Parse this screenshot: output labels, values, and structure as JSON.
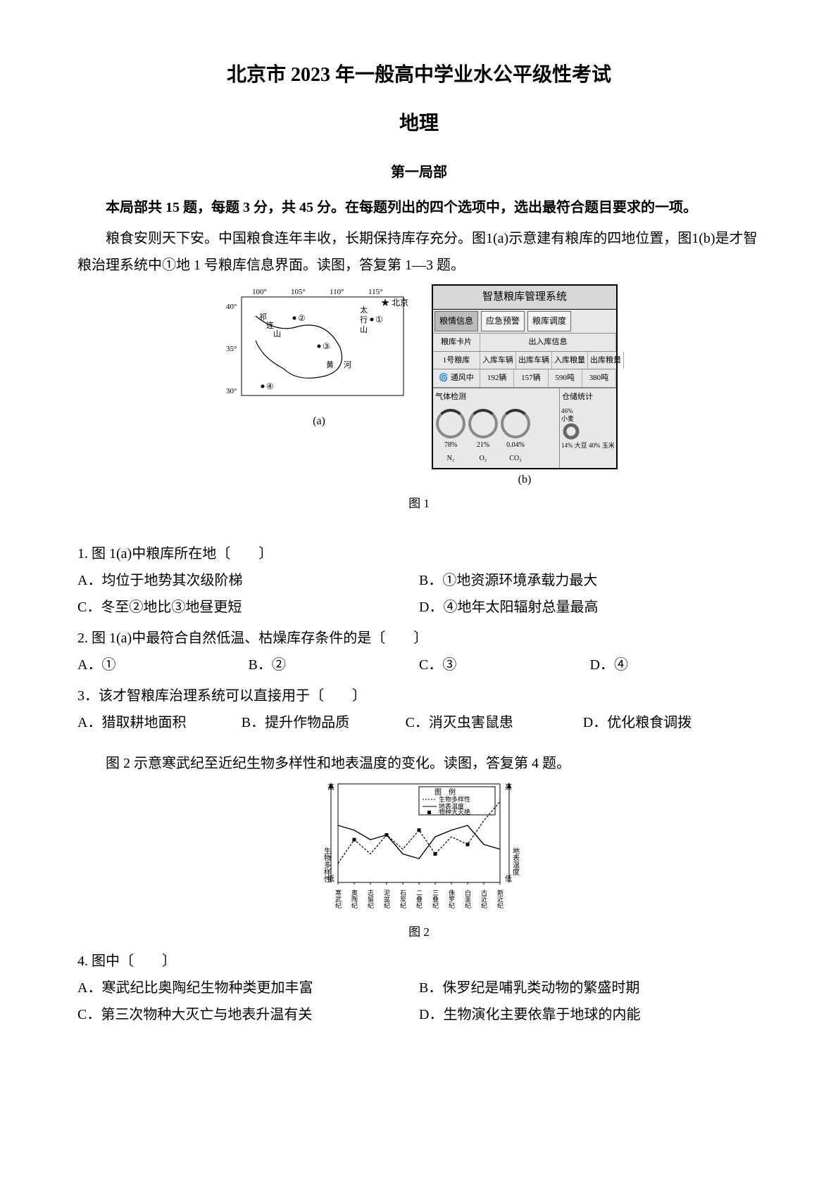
{
  "header": {
    "title_main": "北京市 2023 年一般高中学业水公平级性考试",
    "title_sub": "地理",
    "section": "第一局部",
    "instructions": "本局部共 15 题，每题 3 分，共 45 分。在每题列出的四个选项中，选出最符合题目要求的一项。"
  },
  "intro1": "粮食安则天下安。中国粮食连年丰收，长期保持库存充分。图1(a)示意建有粮库的四地位置，图1(b)是才智粮治理系统中①地 1 号粮库信息界面。读图，答复第 1—3 题。",
  "fig1": {
    "sub_a": "(a)",
    "sub_b": "(b)",
    "caption": "图 1",
    "map": {
      "lon_ticks": [
        "100°",
        "105°",
        "110°",
        "115°"
      ],
      "lat_ticks": [
        "40°",
        "35°",
        "30°"
      ],
      "beijing_label": "★ 北京",
      "markers": [
        "①",
        "②",
        "③",
        "④"
      ],
      "mountain_labels": [
        "祁",
        "连",
        "山",
        "太",
        "行",
        "山"
      ],
      "river_labels": [
        "黄",
        "河"
      ],
      "outline_color": "#000000",
      "bg": "#ffffff",
      "font_size_tick": 11,
      "font_size_label": 12
    },
    "panel": {
      "title": "智慧粮库管理系统",
      "tabs": [
        "粮情信息",
        "应急预警",
        "粮库调度"
      ],
      "card_header": "粮库卡片",
      "io_header": "出入库信息",
      "row1_label": "1号粮库",
      "io_cols": [
        "入库车辆",
        "出库车辆",
        "入库粮量",
        "出库粮量"
      ],
      "status_icon_label": "通风中",
      "io_vals": [
        "192辆",
        "157辆",
        "590吨",
        "380吨"
      ],
      "gas_header": "气体检测",
      "stock_header": "仓储统计",
      "gauges": [
        {
          "pct": "78%",
          "label": "N₂"
        },
        {
          "pct": "21%",
          "label": "O₂"
        },
        {
          "pct": "0.04%",
          "label": "CO₂"
        }
      ],
      "stock_lines": [
        "46%",
        "小麦",
        "14%",
        "大豆",
        "40%",
        "玉米"
      ],
      "border_color": "#000000",
      "bg_color": "#e8e8e8",
      "header_bg": "#d8d8d8"
    }
  },
  "q1": {
    "stem": "1. 图 1(a)中粮库所在地〔　　〕",
    "A": "A．均位于地势其次级阶梯",
    "B": "B．①地资源环境承载力最大",
    "C": "C．冬至②地比③地昼更短",
    "D": "D．④地年太阳辐射总量最高"
  },
  "q2": {
    "stem": "2. 图 1(a)中最符合自然低温、枯燥库存条件的是〔　　〕",
    "A": "A．①",
    "B": "B．②",
    "C": "C．③",
    "D": "D．④"
  },
  "q3": {
    "stem": "3．该才智粮库治理系统可以直接用于〔　　〕",
    "A": "A．猎取耕地面积",
    "B": "B．提升作物品质",
    "C": "C．消灭虫害鼠患",
    "D": "D．优化粮食调拨"
  },
  "intro2": "图 2 示意寒武纪至近纪生物多样性和地表温度的变化。读图，答复第 4 题。",
  "fig2": {
    "caption": "图 2",
    "legend_title": "图　例",
    "legend_items": [
      "生物多样性",
      "地表温度",
      "物种大灭绝"
    ],
    "legend_styles": [
      "dashed",
      "solid",
      "marker"
    ],
    "y_left_label": "生物多样性",
    "y_right_label": "地表温度",
    "y_top": "高",
    "y_bottom": "低",
    "x_ticks": [
      "寒武纪",
      "奥陶纪",
      "志留纪",
      "泥盆纪",
      "石炭纪",
      "二叠纪",
      "三叠纪",
      "侏罗纪",
      "白垩纪",
      "古近纪",
      "新近纪"
    ],
    "biodiversity_series": [
      20,
      45,
      30,
      50,
      35,
      55,
      30,
      48,
      40,
      65,
      85
    ],
    "temperature_series": [
      60,
      55,
      45,
      50,
      30,
      25,
      48,
      55,
      60,
      40,
      35
    ],
    "extinction_x_indices": [
      1,
      3,
      5,
      6,
      8
    ],
    "line_color": "#000000",
    "dash_color": "#000000",
    "bg": "#ffffff"
  },
  "q4": {
    "stem": "4. 图中〔　　〕",
    "A": "A．寒武纪比奥陶纪生物种类更加丰富",
    "B": "B．侏罗纪是哺乳类动物的繁盛时期",
    "C": "C．第三次物种大灭亡与地表升温有关",
    "D": "D．生物演化主要依靠于地球的内能"
  }
}
